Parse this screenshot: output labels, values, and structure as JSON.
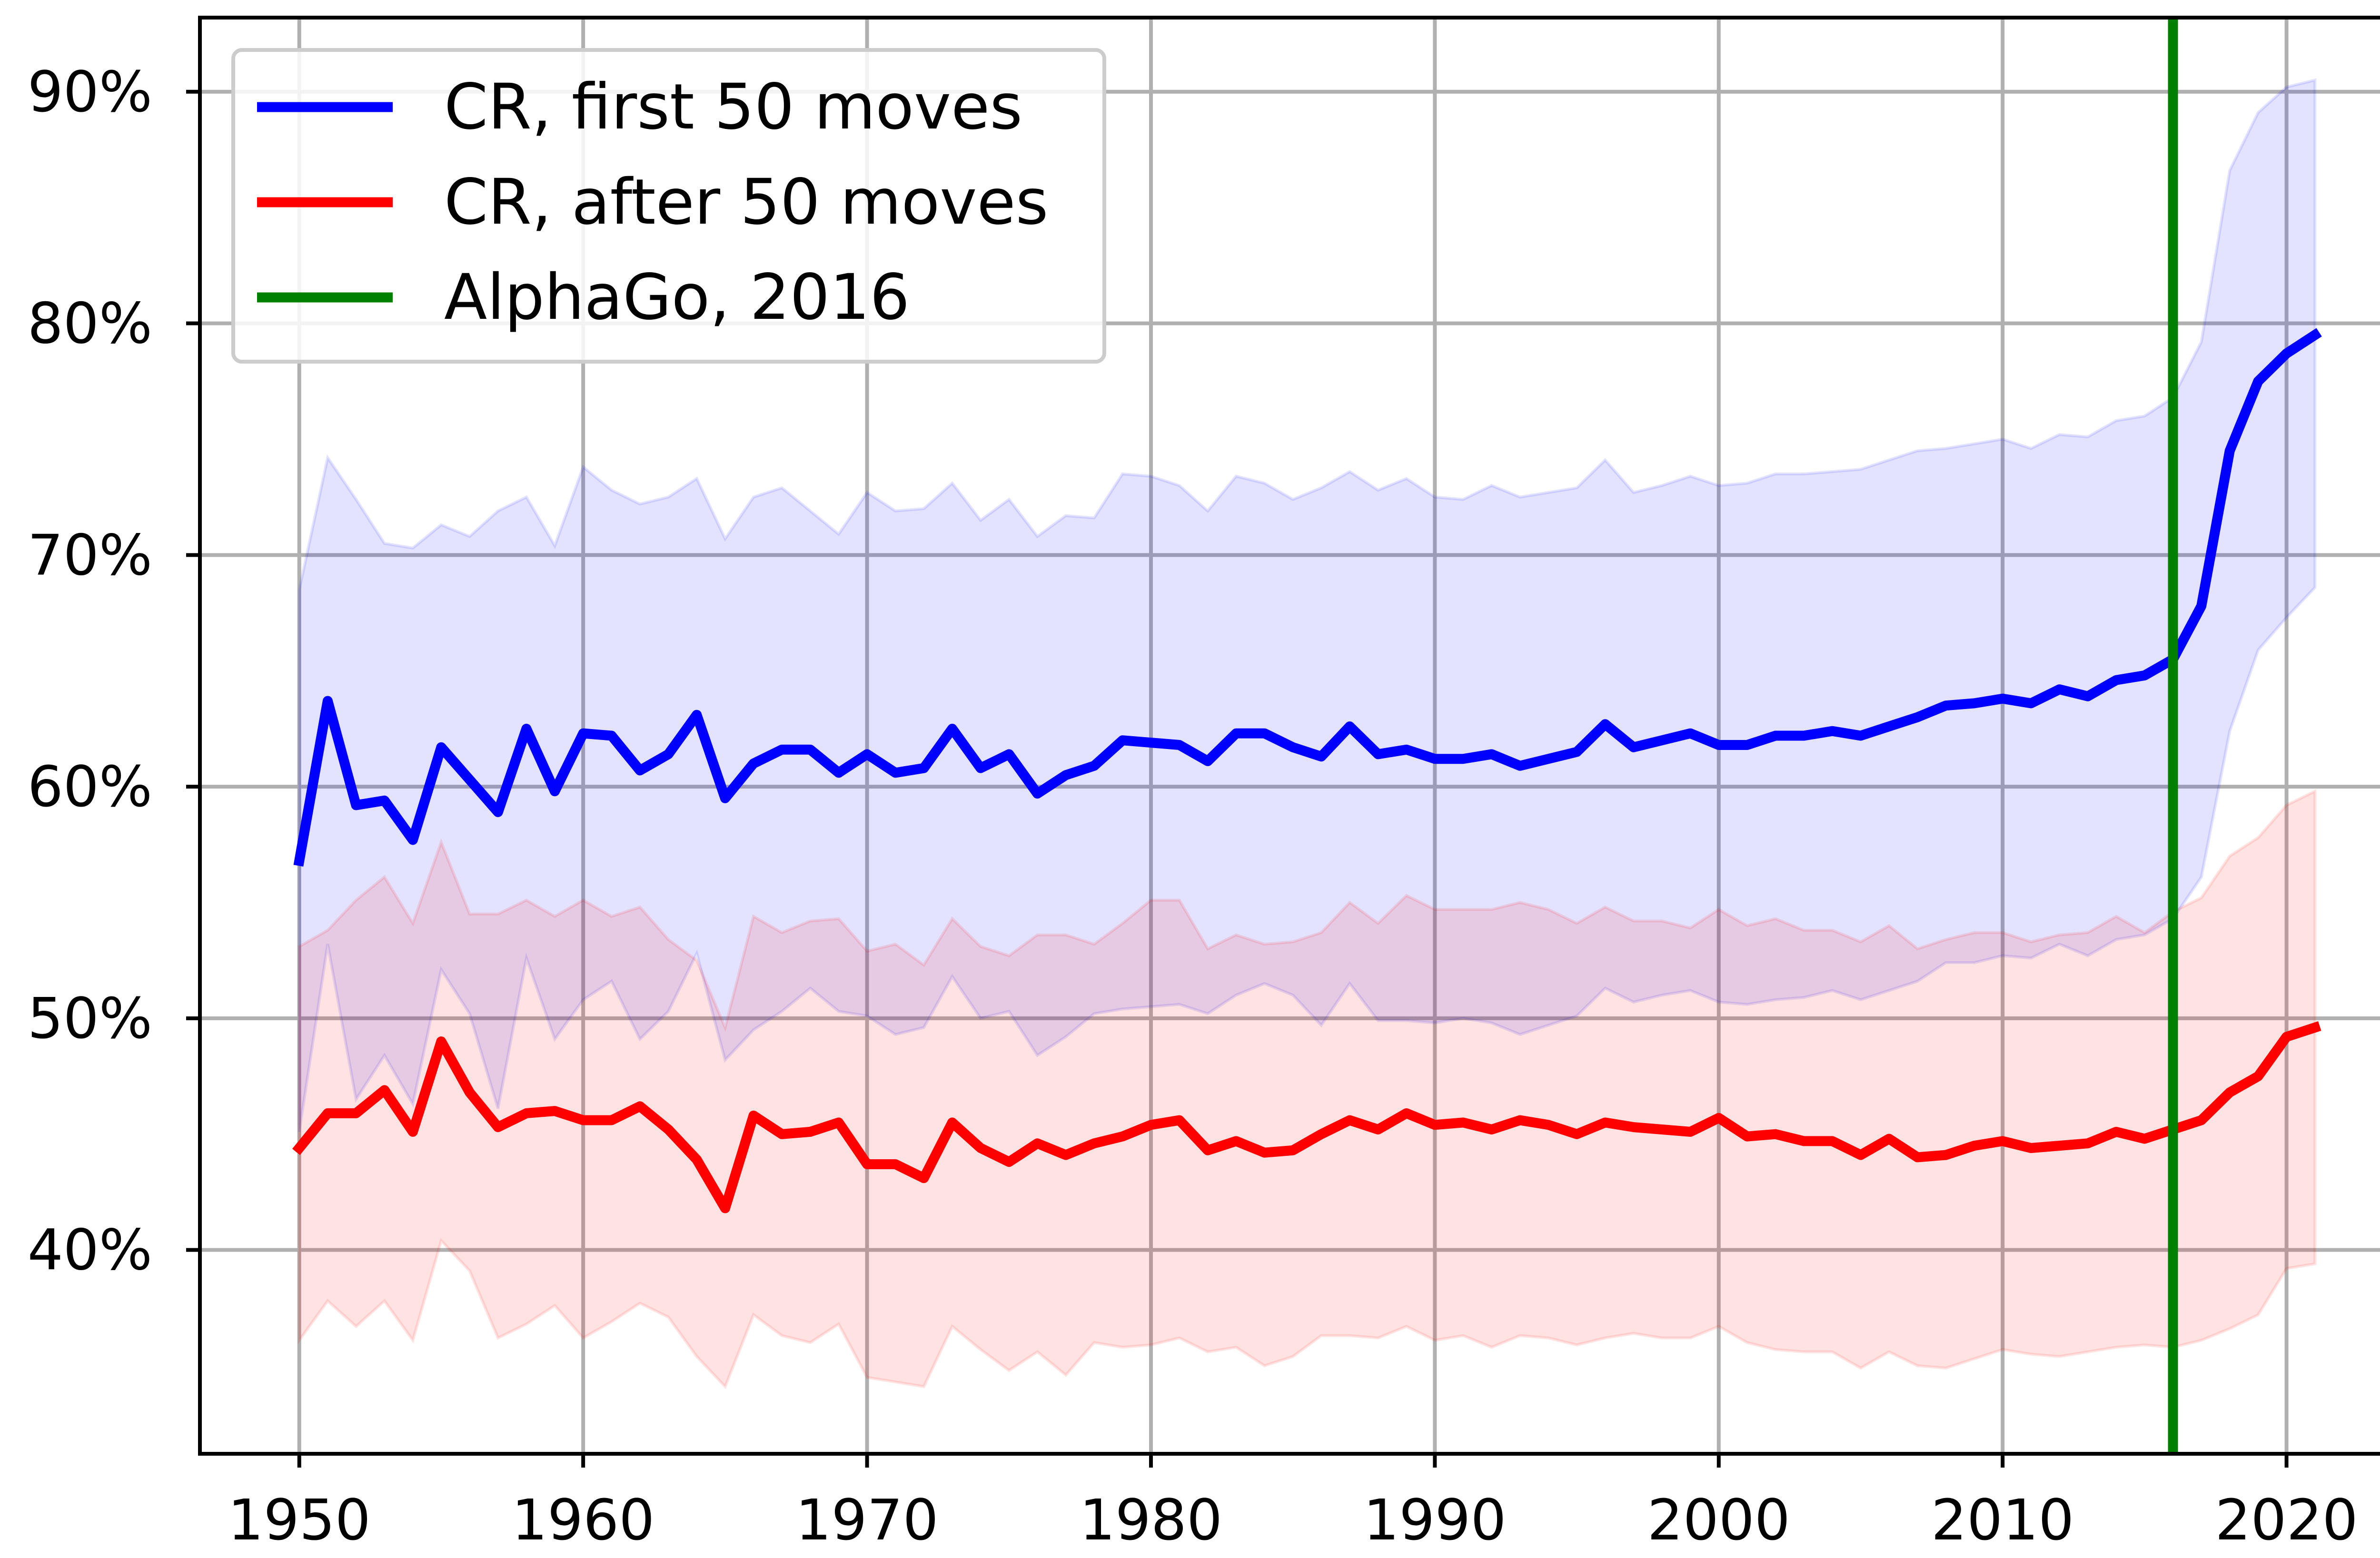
{
  "chart_data": {
    "type": "line",
    "title": "",
    "xlabel": "",
    "ylabel": "",
    "xlim": [
      1946.5,
      2024.5
    ],
    "ylim": [
      0.312,
      0.932
    ],
    "grid": true,
    "legend_placement": "top-left",
    "x_ticks": [
      1950,
      1960,
      1970,
      1980,
      1990,
      2000,
      2010,
      2020
    ],
    "x_tick_labels": [
      "1950",
      "1960",
      "1970",
      "1980",
      "1990",
      "2000",
      "2010",
      "2020"
    ],
    "y_ticks": [
      0.4,
      0.5,
      0.6,
      0.7,
      0.8,
      0.9
    ],
    "y_tick_labels": [
      "40%",
      "50%",
      "60%",
      "70%",
      "80%",
      "90%"
    ],
    "x": [
      1950,
      1951,
      1952,
      1953,
      1954,
      1955,
      1956,
      1957,
      1958,
      1959,
      1960,
      1961,
      1962,
      1963,
      1964,
      1965,
      1966,
      1967,
      1968,
      1969,
      1970,
      1971,
      1972,
      1973,
      1974,
      1975,
      1976,
      1977,
      1978,
      1979,
      1980,
      1981,
      1982,
      1983,
      1984,
      1985,
      1986,
      1987,
      1988,
      1989,
      1990,
      1991,
      1992,
      1993,
      1994,
      1995,
      1996,
      1997,
      1998,
      1999,
      2000,
      2001,
      2002,
      2003,
      2004,
      2005,
      2006,
      2007,
      2008,
      2009,
      2010,
      2011,
      2012,
      2013,
      2014,
      2015,
      2016,
      2017,
      2018,
      2019,
      2020,
      2021
    ],
    "series": [
      {
        "name": "CR, first 50 moves",
        "color": "#0000ff",
        "values": [
          0.568,
          0.637,
          0.592,
          0.594,
          0.577,
          0.617,
          0.603,
          0.589,
          0.625,
          0.598,
          0.623,
          0.622,
          0.607,
          0.614,
          0.631,
          0.595,
          0.61,
          0.616,
          0.616,
          0.606,
          0.614,
          0.606,
          0.608,
          0.625,
          0.608,
          0.614,
          0.597,
          0.605,
          0.609,
          0.62,
          0.619,
          0.618,
          0.611,
          0.623,
          0.623,
          0.617,
          0.613,
          0.626,
          0.614,
          0.616,
          0.612,
          0.612,
          0.614,
          0.609,
          0.612,
          0.615,
          0.627,
          0.617,
          0.62,
          0.623,
          0.618,
          0.618,
          0.622,
          0.622,
          0.624,
          0.622,
          0.626,
          0.63,
          0.635,
          0.636,
          0.638,
          0.636,
          0.642,
          0.639,
          0.646,
          0.648,
          0.655,
          0.678,
          0.745,
          0.775,
          0.787,
          0.795
        ],
        "band_upper": [
          0.685,
          0.742,
          0.724,
          0.705,
          0.703,
          0.713,
          0.708,
          0.719,
          0.725,
          0.704,
          0.738,
          0.728,
          0.722,
          0.725,
          0.733,
          0.707,
          0.725,
          0.729,
          0.719,
          0.709,
          0.727,
          0.719,
          0.72,
          0.731,
          0.715,
          0.724,
          0.708,
          0.717,
          0.716,
          0.735,
          0.734,
          0.73,
          0.719,
          0.734,
          0.731,
          0.724,
          0.729,
          0.736,
          0.728,
          0.733,
          0.725,
          0.724,
          0.73,
          0.725,
          0.727,
          0.729,
          0.741,
          0.727,
          0.73,
          0.734,
          0.73,
          0.731,
          0.735,
          0.735,
          0.736,
          0.737,
          0.741,
          0.745,
          0.746,
          0.748,
          0.75,
          0.746,
          0.752,
          0.751,
          0.758,
          0.76,
          0.768,
          0.792,
          0.866,
          0.891,
          0.902,
          0.905
        ],
        "band_lower": [
          0.451,
          0.532,
          0.465,
          0.484,
          0.463,
          0.521,
          0.502,
          0.461,
          0.526,
          0.491,
          0.508,
          0.516,
          0.491,
          0.503,
          0.528,
          0.482,
          0.495,
          0.503,
          0.513,
          0.503,
          0.501,
          0.493,
          0.496,
          0.518,
          0.5,
          0.503,
          0.484,
          0.492,
          0.502,
          0.504,
          0.505,
          0.506,
          0.502,
          0.51,
          0.515,
          0.51,
          0.497,
          0.515,
          0.499,
          0.499,
          0.498,
          0.5,
          0.498,
          0.493,
          0.497,
          0.501,
          0.513,
          0.507,
          0.51,
          0.512,
          0.507,
          0.506,
          0.508,
          0.509,
          0.512,
          0.508,
          0.512,
          0.516,
          0.524,
          0.524,
          0.527,
          0.526,
          0.532,
          0.527,
          0.534,
          0.536,
          0.543,
          0.561,
          0.624,
          0.659,
          0.673,
          0.686
        ]
      },
      {
        "name": "CR, after 50 moves",
        "color": "#ff0000",
        "values": [
          0.444,
          0.459,
          0.459,
          0.469,
          0.451,
          0.49,
          0.468,
          0.453,
          0.459,
          0.46,
          0.456,
          0.456,
          0.462,
          0.452,
          0.439,
          0.418,
          0.458,
          0.45,
          0.451,
          0.455,
          0.437,
          0.437,
          0.431,
          0.455,
          0.444,
          0.438,
          0.446,
          0.441,
          0.446,
          0.449,
          0.454,
          0.456,
          0.443,
          0.447,
          0.442,
          0.443,
          0.45,
          0.456,
          0.452,
          0.459,
          0.454,
          0.455,
          0.452,
          0.456,
          0.454,
          0.45,
          0.455,
          0.453,
          0.452,
          0.451,
          0.457,
          0.449,
          0.45,
          0.447,
          0.447,
          0.441,
          0.448,
          0.44,
          0.441,
          0.445,
          0.447,
          0.444,
          0.445,
          0.446,
          0.451,
          0.448,
          0.452,
          0.456,
          0.468,
          0.475,
          0.492,
          0.496
        ],
        "band_upper": [
          0.531,
          0.538,
          0.551,
          0.561,
          0.541,
          0.576,
          0.545,
          0.545,
          0.551,
          0.544,
          0.551,
          0.544,
          0.548,
          0.534,
          0.525,
          0.496,
          0.544,
          0.537,
          0.542,
          0.543,
          0.529,
          0.532,
          0.523,
          0.543,
          0.531,
          0.527,
          0.536,
          0.536,
          0.532,
          0.541,
          0.551,
          0.551,
          0.53,
          0.536,
          0.532,
          0.533,
          0.537,
          0.55,
          0.541,
          0.553,
          0.547,
          0.547,
          0.547,
          0.55,
          0.547,
          0.541,
          0.548,
          0.542,
          0.542,
          0.539,
          0.547,
          0.54,
          0.543,
          0.538,
          0.538,
          0.533,
          0.54,
          0.53,
          0.534,
          0.537,
          0.537,
          0.533,
          0.536,
          0.537,
          0.544,
          0.537,
          0.546,
          0.552,
          0.57,
          0.578,
          0.592,
          0.598
        ],
        "band_lower": [
          0.361,
          0.378,
          0.367,
          0.378,
          0.361,
          0.404,
          0.391,
          0.362,
          0.368,
          0.376,
          0.362,
          0.369,
          0.377,
          0.371,
          0.354,
          0.341,
          0.372,
          0.363,
          0.36,
          0.368,
          0.345,
          0.343,
          0.341,
          0.367,
          0.357,
          0.348,
          0.356,
          0.346,
          0.36,
          0.358,
          0.359,
          0.362,
          0.356,
          0.358,
          0.35,
          0.354,
          0.363,
          0.363,
          0.362,
          0.367,
          0.361,
          0.363,
          0.358,
          0.363,
          0.362,
          0.359,
          0.362,
          0.364,
          0.362,
          0.362,
          0.367,
          0.36,
          0.357,
          0.356,
          0.356,
          0.349,
          0.356,
          0.35,
          0.349,
          0.353,
          0.357,
          0.355,
          0.354,
          0.356,
          0.358,
          0.359,
          0.358,
          0.361,
          0.366,
          0.372,
          0.392,
          0.394
        ]
      }
    ],
    "vlines": [
      {
        "name": "AlphaGo, 2016",
        "x": 2016,
        "color": "#008000"
      }
    ],
    "band_alpha": 0.11
  }
}
